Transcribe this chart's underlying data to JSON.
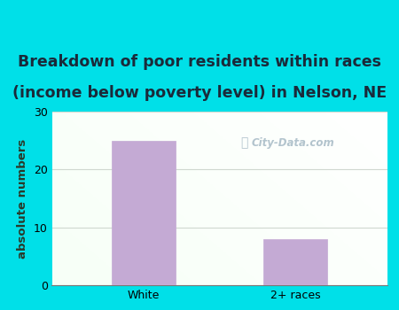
{
  "categories": [
    "White",
    "2+ races"
  ],
  "values": [
    25,
    8
  ],
  "bar_color": "#c4aad4",
  "title_line1": "Breakdown of poor residents within races",
  "title_line2": "(income below poverty level) in Nelson, NE",
  "ylabel": "absolute numbers",
  "ylim": [
    0,
    30
  ],
  "yticks": [
    0,
    10,
    20,
    30
  ],
  "outer_bg": "#00e0e8",
  "plot_bg": "#f5fff5",
  "grid_color": "#d0d8d0",
  "title_color": "#1a2a3a",
  "title_fontsize": 12.5,
  "label_fontsize": 9.5,
  "tick_fontsize": 9,
  "ylabel_color": "#2a3a2a",
  "watermark_text": "City-Data.com",
  "watermark_color": "#9ab0be",
  "watermark_alpha": 0.75
}
